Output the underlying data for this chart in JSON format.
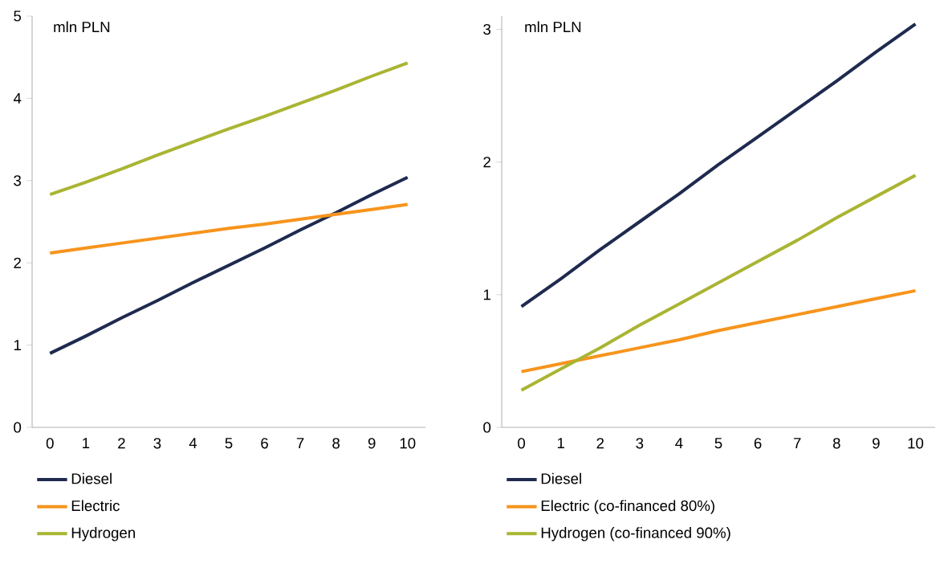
{
  "chart_data": [
    {
      "type": "line",
      "ylabel": "mln PLN",
      "categories": [
        "0",
        "1",
        "2",
        "3",
        "4",
        "5",
        "6",
        "7",
        "8",
        "9",
        "10"
      ],
      "ylim": [
        0,
        5
      ],
      "yticks": [
        0,
        1,
        2,
        3,
        4,
        5
      ],
      "legend": "bottom",
      "marker": "none",
      "line_style": "solid",
      "series": [
        {
          "name": "Diesel",
          "color": "#1f2a4f",
          "values": [
            0.9,
            1.11,
            1.33,
            1.54,
            1.76,
            1.97,
            2.18,
            2.4,
            2.61,
            2.83,
            3.04
          ]
        },
        {
          "name": "Electric",
          "color": "#f7941d",
          "values": [
            2.12,
            2.18,
            2.24,
            2.3,
            2.36,
            2.42,
            2.47,
            2.53,
            2.59,
            2.65,
            2.71
          ]
        },
        {
          "name": "Hydrogen",
          "color": "#a9b533",
          "values": [
            2.83,
            2.98,
            3.14,
            3.31,
            3.47,
            3.63,
            3.78,
            3.94,
            4.1,
            4.27,
            4.43
          ]
        }
      ]
    },
    {
      "type": "line",
      "ylabel": "mln PLN",
      "categories": [
        "0",
        "1",
        "2",
        "3",
        "4",
        "5",
        "6",
        "7",
        "8",
        "9",
        "10"
      ],
      "ylim": [
        0,
        3.1
      ],
      "yticks": [
        0,
        1,
        2,
        3
      ],
      "legend": "bottom",
      "marker": "none",
      "line_style": "solid",
      "series": [
        {
          "name": "Diesel",
          "color": "#1f2a4f",
          "values": [
            0.91,
            1.12,
            1.34,
            1.55,
            1.76,
            1.98,
            2.19,
            2.4,
            2.61,
            2.83,
            3.04
          ]
        },
        {
          "name": "Electric (co-financed 80%)",
          "color": "#f7941d",
          "values": [
            0.42,
            0.48,
            0.54,
            0.6,
            0.66,
            0.73,
            0.79,
            0.85,
            0.91,
            0.97,
            1.03
          ]
        },
        {
          "name": "Hydrogen (co-financed 90%)",
          "color": "#a9b533",
          "values": [
            0.28,
            0.44,
            0.6,
            0.77,
            0.93,
            1.09,
            1.25,
            1.41,
            1.58,
            1.74,
            1.9
          ]
        }
      ]
    }
  ]
}
